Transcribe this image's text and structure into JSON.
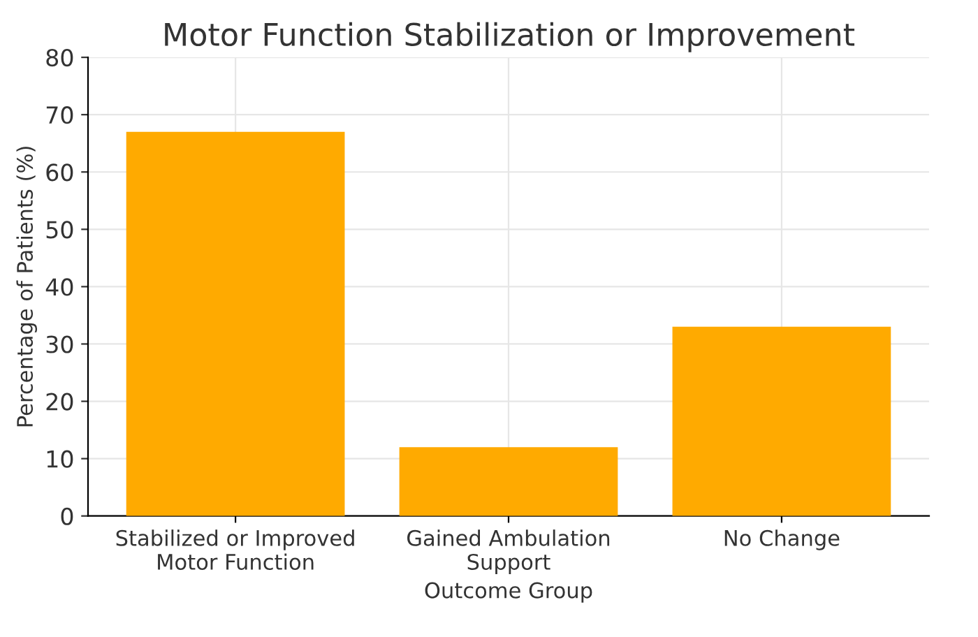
{
  "chart_data": {
    "type": "bar",
    "title": "Motor Function Stabilization or Improvement",
    "xlabel": "Outcome Group",
    "ylabel": "Percentage of Patients (%)",
    "categories": [
      "Stabilized or Improved Motor Function",
      "Gained Ambulation Support",
      "No Change"
    ],
    "values": [
      67,
      12,
      33
    ],
    "color": "#ffaa00",
    "ylim": [
      0,
      80
    ],
    "yticks": [
      0,
      10,
      20,
      30,
      40,
      50,
      60,
      70,
      80
    ],
    "grid": true
  }
}
